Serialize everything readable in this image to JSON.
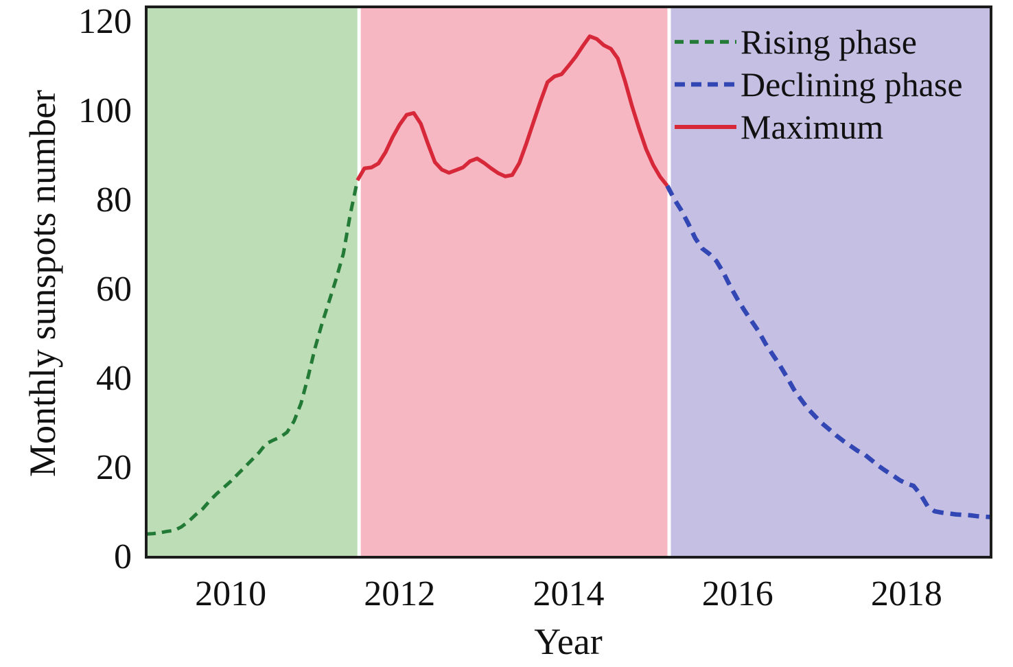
{
  "figure": {
    "border_color": "#1c1c1c",
    "background_color": "#ffffff"
  },
  "chart_data": {
    "type": "line",
    "title": "",
    "xlabel": "Year",
    "ylabel": "Monthly sunspots number",
    "xlim": [
      2009,
      2019
    ],
    "ylim": [
      0,
      123.4
    ],
    "x_ticks": [
      2010,
      2012,
      2014,
      2016,
      2018
    ],
    "y_ticks": [
      0,
      20,
      40,
      60,
      80,
      100,
      120
    ],
    "grid": false,
    "legend_position": "upper right",
    "background_phases": [
      {
        "name": "rising-phase-region",
        "x_start": 2009.0,
        "x_end": 2011.52,
        "color": "#bdddb6"
      },
      {
        "name": "maximum-phase-region",
        "x_start": 2011.52,
        "x_end": 2015.19,
        "color": "#f7b7c2"
      },
      {
        "name": "declining-phase-region",
        "x_start": 2015.19,
        "x_end": 2019.0,
        "color": "#c4bfe3"
      }
    ],
    "series": [
      {
        "name": "Rising phase",
        "color": "#227a36",
        "style": "dashed",
        "points": [
          [
            2009.0,
            5.2
          ],
          [
            2009.083,
            5.3
          ],
          [
            2009.167,
            5.5
          ],
          [
            2009.25,
            5.8
          ],
          [
            2009.333,
            6.0
          ],
          [
            2009.417,
            6.8
          ],
          [
            2009.5,
            8.0
          ],
          [
            2009.583,
            9.5
          ],
          [
            2009.667,
            10.8
          ],
          [
            2009.75,
            12.6
          ],
          [
            2009.833,
            14.2
          ],
          [
            2009.917,
            15.6
          ],
          [
            2010.0,
            17.0
          ],
          [
            2010.083,
            18.6
          ],
          [
            2010.167,
            20.2
          ],
          [
            2010.25,
            21.8
          ],
          [
            2010.333,
            23.4
          ],
          [
            2010.417,
            25.4
          ],
          [
            2010.5,
            26.2
          ],
          [
            2010.583,
            26.9
          ],
          [
            2010.667,
            28.0
          ],
          [
            2010.75,
            30.5
          ],
          [
            2010.833,
            34.5
          ],
          [
            2010.917,
            40.5
          ],
          [
            2011.0,
            47.0
          ],
          [
            2011.083,
            52.5
          ],
          [
            2011.167,
            57.5
          ],
          [
            2011.25,
            62.5
          ],
          [
            2011.333,
            68.0
          ],
          [
            2011.417,
            77.0
          ],
          [
            2011.5,
            84.5
          ]
        ]
      },
      {
        "name": "Declining phase",
        "color": "#3246b4",
        "style": "dashed",
        "points": [
          [
            2015.167,
            83.3
          ],
          [
            2015.25,
            80.3
          ],
          [
            2015.333,
            77.8
          ],
          [
            2015.417,
            74.8
          ],
          [
            2015.5,
            71.5
          ],
          [
            2015.583,
            69.2
          ],
          [
            2015.667,
            68.0
          ],
          [
            2015.75,
            66.4
          ],
          [
            2015.833,
            63.8
          ],
          [
            2015.917,
            60.6
          ],
          [
            2016.0,
            57.8
          ],
          [
            2016.083,
            55.3
          ],
          [
            2016.167,
            52.9
          ],
          [
            2016.25,
            50.6
          ],
          [
            2016.333,
            47.8
          ],
          [
            2016.417,
            45.4
          ],
          [
            2016.5,
            43.0
          ],
          [
            2016.583,
            40.4
          ],
          [
            2016.667,
            37.6
          ],
          [
            2016.75,
            35.4
          ],
          [
            2016.833,
            33.3
          ],
          [
            2016.917,
            31.6
          ],
          [
            2017.0,
            30.0
          ],
          [
            2017.083,
            28.7
          ],
          [
            2017.167,
            27.3
          ],
          [
            2017.25,
            26.1
          ],
          [
            2017.333,
            25.0
          ],
          [
            2017.417,
            23.9
          ],
          [
            2017.5,
            23.1
          ],
          [
            2017.583,
            21.8
          ],
          [
            2017.667,
            20.5
          ],
          [
            2017.75,
            19.4
          ],
          [
            2017.833,
            18.4
          ],
          [
            2017.917,
            17.3
          ],
          [
            2018.0,
            16.5
          ],
          [
            2018.083,
            16.0
          ],
          [
            2018.167,
            14.0
          ],
          [
            2018.25,
            11.4
          ],
          [
            2018.333,
            10.3
          ],
          [
            2018.417,
            10.0
          ],
          [
            2018.5,
            9.8
          ],
          [
            2018.583,
            9.6
          ],
          [
            2018.667,
            9.5
          ],
          [
            2018.75,
            9.4
          ],
          [
            2018.833,
            9.2
          ],
          [
            2018.917,
            9.1
          ],
          [
            2019.0,
            9.0
          ]
        ]
      },
      {
        "name": "Maximum",
        "color": "#d62839",
        "style": "solid",
        "points": [
          [
            2011.5,
            84.5
          ],
          [
            2011.583,
            87.2
          ],
          [
            2011.667,
            87.4
          ],
          [
            2011.75,
            88.3
          ],
          [
            2011.833,
            90.8
          ],
          [
            2011.917,
            94.2
          ],
          [
            2012.0,
            97.0
          ],
          [
            2012.083,
            99.2
          ],
          [
            2012.167,
            99.6
          ],
          [
            2012.25,
            97.2
          ],
          [
            2012.333,
            92.8
          ],
          [
            2012.417,
            88.6
          ],
          [
            2012.5,
            86.9
          ],
          [
            2012.583,
            86.2
          ],
          [
            2012.667,
            86.8
          ],
          [
            2012.75,
            87.4
          ],
          [
            2012.833,
            88.8
          ],
          [
            2012.917,
            89.4
          ],
          [
            2013.0,
            88.4
          ],
          [
            2013.083,
            87.2
          ],
          [
            2013.167,
            86.1
          ],
          [
            2013.25,
            85.4
          ],
          [
            2013.333,
            85.7
          ],
          [
            2013.417,
            88.4
          ],
          [
            2013.5,
            92.8
          ],
          [
            2013.583,
            97.5
          ],
          [
            2013.667,
            102.2
          ],
          [
            2013.75,
            106.5
          ],
          [
            2013.833,
            107.8
          ],
          [
            2013.917,
            108.3
          ],
          [
            2014.0,
            110.2
          ],
          [
            2014.083,
            112.2
          ],
          [
            2014.167,
            114.6
          ],
          [
            2014.25,
            116.8
          ],
          [
            2014.333,
            116.2
          ],
          [
            2014.417,
            114.8
          ],
          [
            2014.5,
            114.0
          ],
          [
            2014.583,
            111.8
          ],
          [
            2014.667,
            106.8
          ],
          [
            2014.75,
            101.2
          ],
          [
            2014.833,
            96.2
          ],
          [
            2014.917,
            91.5
          ],
          [
            2015.0,
            88.0
          ],
          [
            2015.083,
            85.3
          ],
          [
            2015.167,
            83.3
          ]
        ]
      }
    ]
  }
}
